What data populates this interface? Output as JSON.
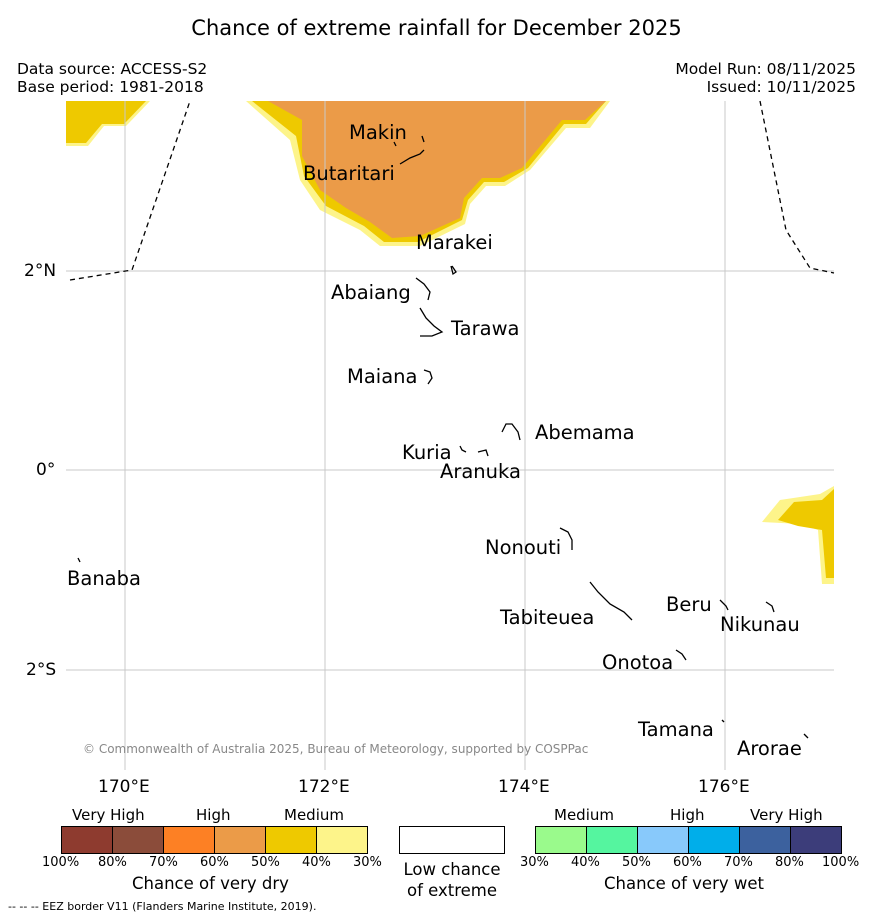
{
  "title": "Chance of extreme rainfall for December 2025",
  "header": {
    "data_source": "Data source: ACCESS-S2",
    "base_period": "Base period: 1981-2018",
    "model_run": "Model Run: 08/11/2025",
    "issued": "Issued: 10/11/2025"
  },
  "map": {
    "lat_labels": [
      "2°N",
      "0°",
      "2°S"
    ],
    "lon_labels": [
      "170°E",
      "172°E",
      "174°E",
      "176°E"
    ],
    "places": {
      "makin": "Makin",
      "butaritari": "Butaritari",
      "marakei": "Marakei",
      "abaiang": "Abaiang",
      "tarawa": "Tarawa",
      "maiana": "Maiana",
      "abemama": "Abemama",
      "kuria": "Kuria",
      "aranuka": "Aranuka",
      "nonouti": "Nonouti",
      "banaba": "Banaba",
      "tabiteuea": "Tabiteuea",
      "beru": "Beru",
      "nikunau": "Nikunau",
      "onotoa": "Onotoa",
      "tamana": "Tamana",
      "arorae": "Arorae"
    },
    "copyright": "© Commonwealth of Australia 2025, Bureau of Meteorology, supported by COSPPac",
    "colors": {
      "dry_40_50": "#eec900",
      "dry_50_60": "#eb9b48",
      "dry_30_40": "#fdf48a"
    }
  },
  "legend": {
    "dry": {
      "categories": [
        "Very High",
        "High",
        "Medium"
      ],
      "ticks": [
        "100%",
        "80%",
        "70%",
        "60%",
        "50%",
        "40%",
        "30%"
      ],
      "title": "Chance of very dry",
      "colors": [
        "#8e3b2f",
        "#8b4c3a",
        "#fd8024",
        "#eb9b48",
        "#eec900",
        "#fdf48a"
      ]
    },
    "low": {
      "title_line1": "Low chance",
      "title_line2": "of extreme"
    },
    "wet": {
      "categories": [
        "Medium",
        "High",
        "Very High"
      ],
      "ticks": [
        "30%",
        "40%",
        "50%",
        "60%",
        "70%",
        "80%",
        "100%"
      ],
      "title": "Chance of very wet",
      "colors": [
        "#9afa8c",
        "#55f59f",
        "#88c9fb",
        "#00aeea",
        "#3c619e",
        "#3c3d7a"
      ]
    }
  },
  "footnote": "--  --  -- EEZ border V11 (Flanders Marine Institute, 2019)."
}
